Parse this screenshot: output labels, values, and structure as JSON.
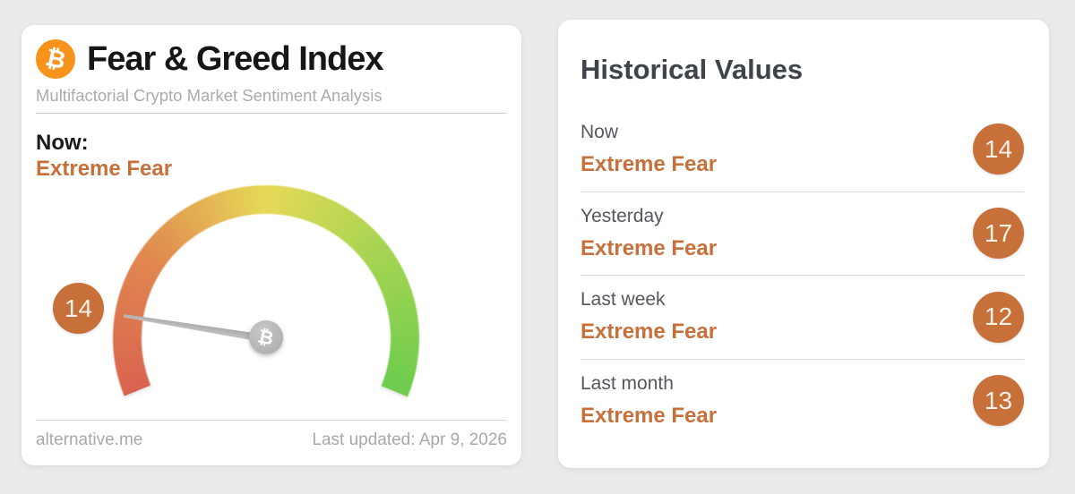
{
  "colors": {
    "accent_orange": "#c7703a",
    "bitcoin_orange": "#f7931a",
    "badge_text": "#f8f1e7",
    "needle_gray": "#b3b3b3",
    "gauge_gradient": [
      "#d96350",
      "#e0894f",
      "#e6d957",
      "#abd552",
      "#6ecc4e"
    ]
  },
  "left_card": {
    "title": "Fear & Greed Index",
    "subtitle": "Multifactorial Crypto Market Sentiment Analysis",
    "now_label": "Now:",
    "now_classification": "Extreme Fear",
    "badge_value": "14",
    "gauge": {
      "value": 14,
      "min": 0,
      "max": 100
    },
    "footer": {
      "source": "alternative.me",
      "last_updated": "Last updated: Apr 9, 2026"
    }
  },
  "right_card": {
    "title": "Historical Values",
    "rows": [
      {
        "label": "Now",
        "classification": "Extreme Fear",
        "value": "14"
      },
      {
        "label": "Yesterday",
        "classification": "Extreme Fear",
        "value": "17"
      },
      {
        "label": "Last week",
        "classification": "Extreme Fear",
        "value": "12"
      },
      {
        "label": "Last month",
        "classification": "Extreme Fear",
        "value": "13"
      }
    ]
  },
  "chart_data": {
    "type": "gauge",
    "title": "Fear & Greed Index",
    "subtitle": "Multifactorial Crypto Market Sentiment Analysis",
    "value": 14,
    "classification": "Extreme Fear",
    "range": [
      0,
      100
    ],
    "scale": "angular gauge sweeping ~224deg, red (0 extreme fear) through orange and yellow (50) to green (100 extreme greed), needle at 14",
    "source": "alternative.me",
    "last_updated": "Apr 9, 2026",
    "historical_values": [
      {
        "period": "Now",
        "classification": "Extreme Fear",
        "value": 14
      },
      {
        "period": "Yesterday",
        "classification": "Extreme Fear",
        "value": 17
      },
      {
        "period": "Last week",
        "classification": "Extreme Fear",
        "value": 12
      },
      {
        "period": "Last month",
        "classification": "Extreme Fear",
        "value": 13
      }
    ]
  }
}
